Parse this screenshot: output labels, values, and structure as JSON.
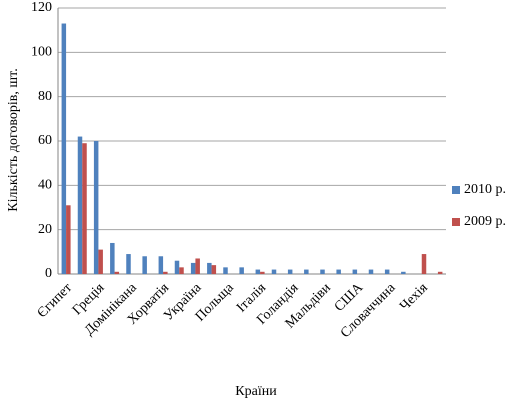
{
  "chart_data": {
    "type": "bar",
    "x_label": "Країни",
    "y_label": "Кількість договорів, шт.",
    "categories": [
      "Єгипет",
      null,
      "Греція",
      null,
      "Домінікана",
      null,
      "Хорватія",
      null,
      "Україна",
      null,
      "Польща",
      null,
      "Італія",
      null,
      "Голандія",
      null,
      "Мальдіви",
      null,
      "США",
      null,
      "Словаччина",
      null,
      "Чехія",
      null
    ],
    "series": [
      {
        "name": "2010 р.",
        "color": "#4f81bd",
        "values": [
          113,
          62,
          60,
          14,
          9,
          8,
          8,
          6,
          5,
          5,
          3,
          3,
          2,
          2,
          2,
          2,
          2,
          2,
          2,
          2,
          2,
          1,
          0,
          0
        ]
      },
      {
        "name": "2009 р.",
        "color": "#c0504d",
        "values": [
          31,
          59,
          11,
          1,
          0,
          0,
          1,
          3,
          7,
          4,
          0,
          0,
          1,
          0,
          0,
          0,
          0,
          0,
          0,
          0,
          0,
          0,
          9,
          1
        ]
      }
    ],
    "ylim": [
      0,
      120
    ],
    "yticks": [
      0,
      20,
      40,
      60,
      80,
      100,
      120
    ],
    "grid": true,
    "legend": "right"
  }
}
